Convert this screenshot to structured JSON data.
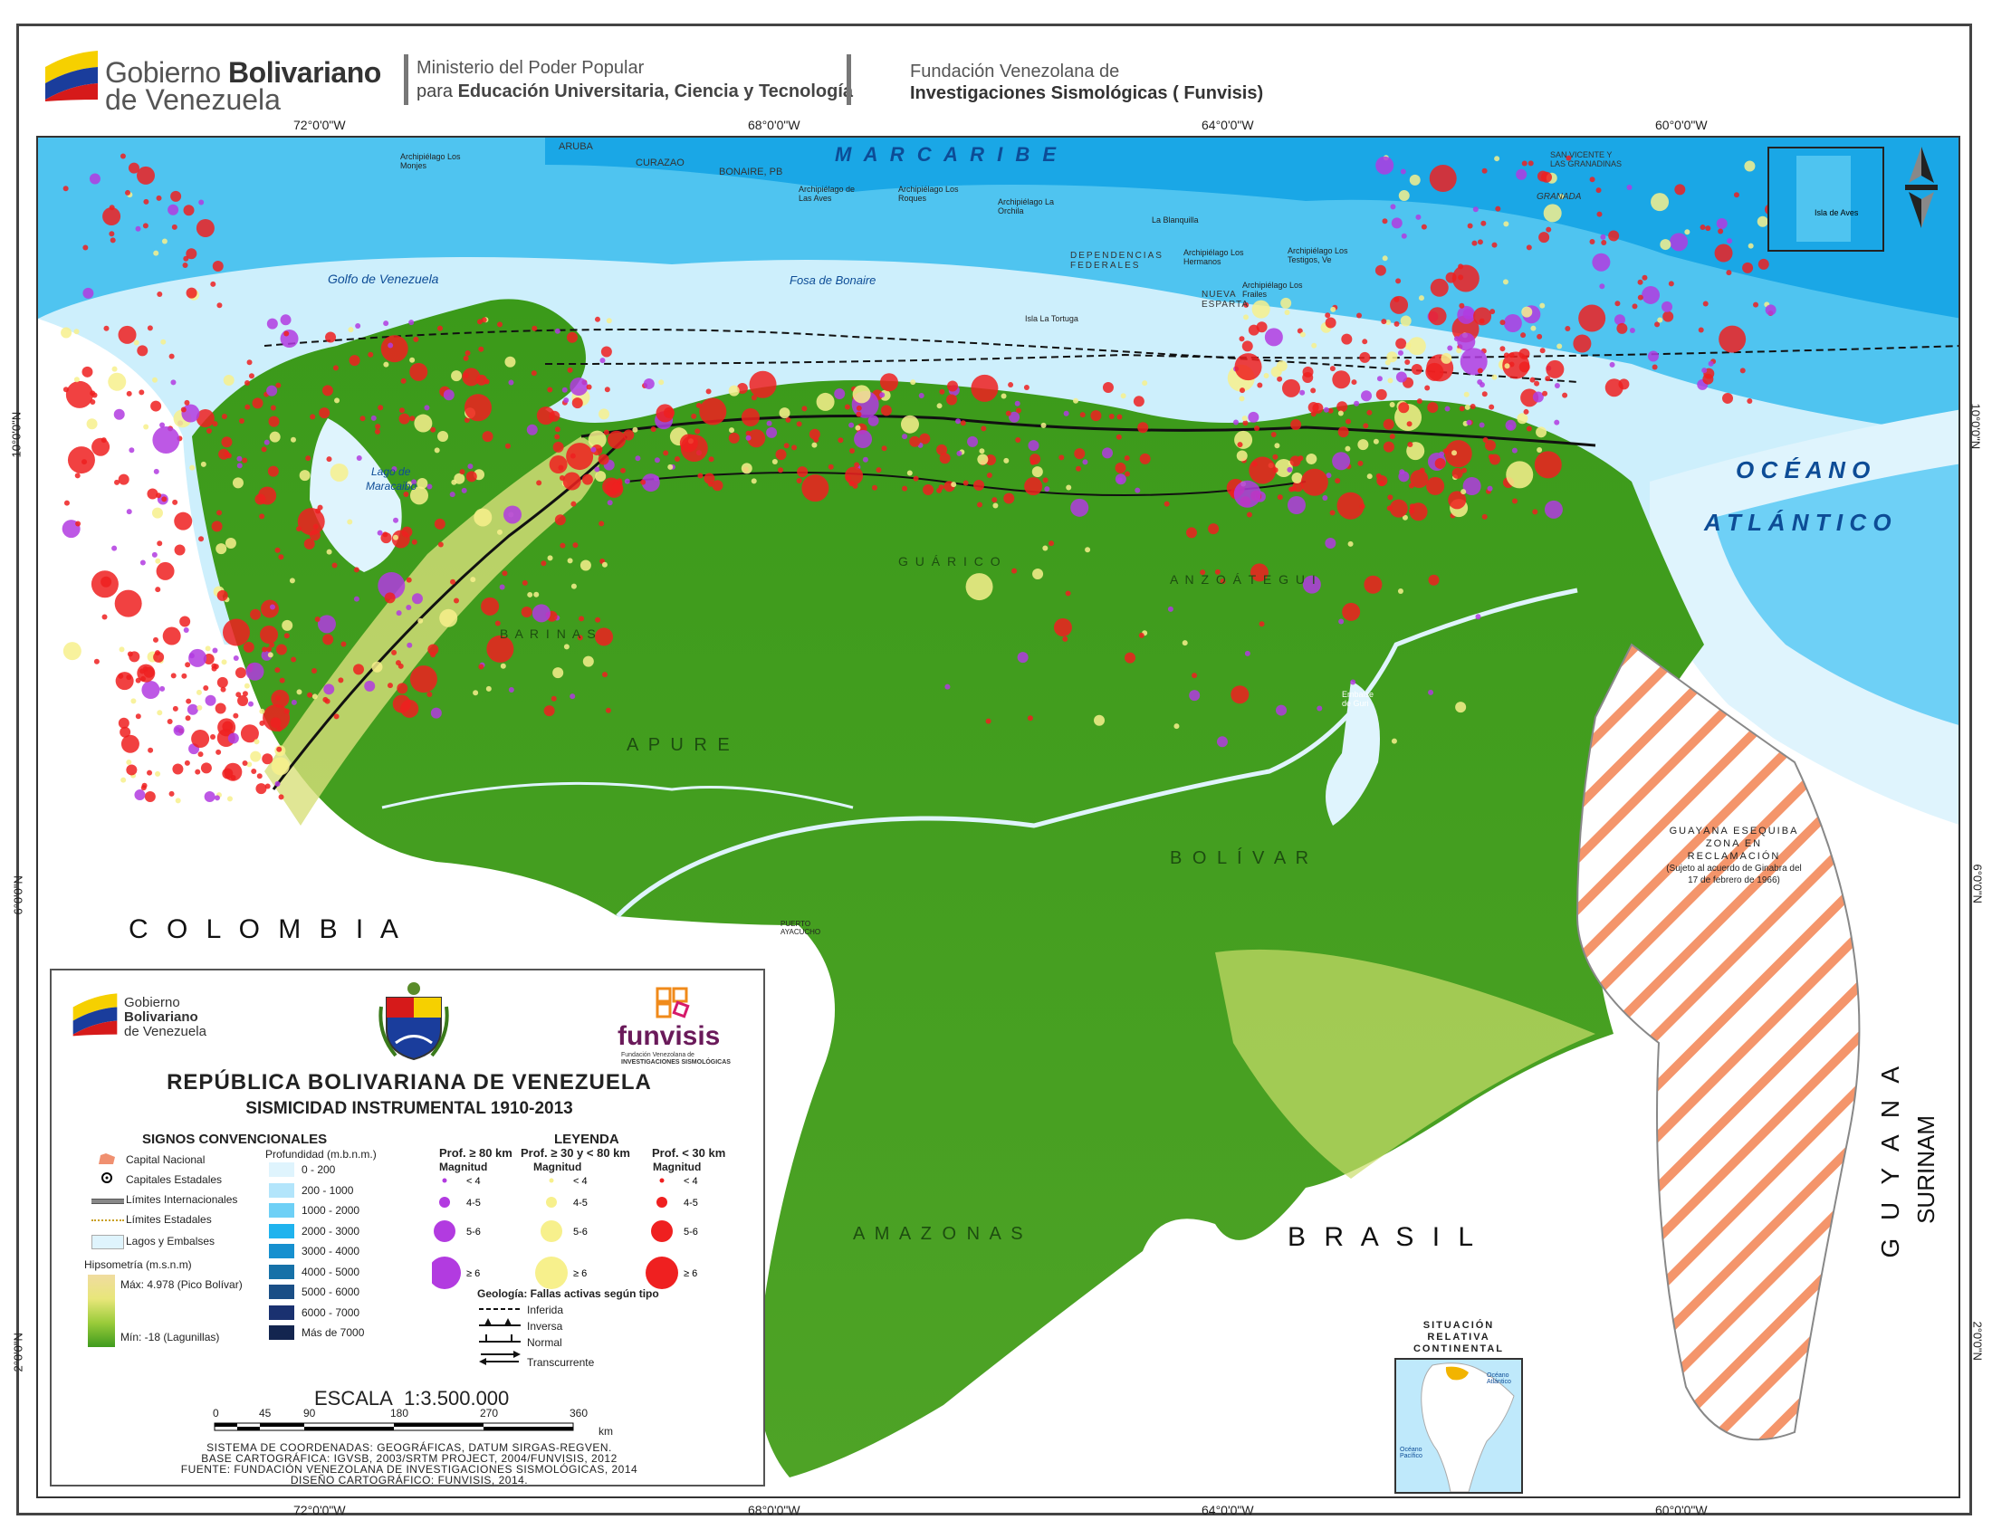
{
  "header": {
    "gov_line1_a": "Gobierno ",
    "gov_line1_b": "Bolivariano",
    "gov_line2": "de Venezuela",
    "ministry_line1": "Ministerio del Poder Popular",
    "ministry_line2_a": "para ",
    "ministry_line2_b": "Educación Universitaria, Ciencia y Tecnología",
    "funvisis_line1": "Fundación Venezolana de",
    "funvisis_line2": "Investigaciones Sismológicas ( Funvisis)"
  },
  "map": {
    "colors": {
      "sea_deep": "#1aa7e6",
      "sea_mid": "#4fc4f0",
      "sea_shallow": "#bfe9fb",
      "land": "#3f9b1e",
      "neighbor": "#ffffff",
      "fault": "#111111",
      "disputed_hatch": "#f4956b"
    },
    "coords": {
      "top": [
        "72°0'0\"W",
        "68°0'0\"W",
        "64°0'0\"W",
        "60°0'0\"W"
      ],
      "bottom": [
        "72°0'0\"W",
        "68°0'0\"W",
        "64°0'0\"W",
        "60°0'0\"W"
      ],
      "left": [
        "10°0'0\"N",
        "6°0'0\"N",
        "2°0'0\"N"
      ],
      "right": [
        "10°0'0\"N",
        "6°0'0\"N",
        "2°0'0\"N"
      ]
    },
    "labels": {
      "mar_caribe": "M A R   C A R I B E",
      "oceano": "O C É A N O",
      "atlantico": "A T L Á N T I C O",
      "colombia": "C   O   L   O   M   B   I   A",
      "brasil": "B   R   A   S   I   L",
      "guyana": "G   U   Y   A   N   A",
      "surinam": "SURINAM",
      "apure": "A  P  U  R  E",
      "bolivar": "B  O  L  Í  V  A  R",
      "amazonas": "A  M  A  Z  O  N  A  S",
      "barinas": "B  A  R  I  N  A  S",
      "guarico": "G  U  Á  R  I  C  O",
      "anzoategui": "A  N  Z  O  Á  T  E  G  U  I",
      "golfo": "Golfo de Venezuela",
      "lago": "Lago de",
      "maracaibo": "Maracaibo",
      "fosa": "Fosa de Bonaire",
      "aruba": "ARUBA",
      "curazao": "CURAZAO",
      "bonaire": "BONAIRE, PB",
      "granada": "GRANADA",
      "san_vicente": "SAN VICENTE Y LAS GRANADINAS",
      "monjes": "Archipiélago Los Monjes",
      "aves": "Archipiélago de Las Aves",
      "roques": "Archipiélago Los Roques",
      "orchila": "Archipiélago La Orchila",
      "blanquilla": "La Blanquilla",
      "hermanos": "Archipiélago Los Hermanos",
      "frailes": "Archipiélago Los Frailes",
      "testigos": "Archipiélago Los Testigos, Ve",
      "dependencias": "DEPENDENCIAS FEDERALES",
      "tortuga": "Isla La Tortuga",
      "nueva_esparta": "NUEVA ESPARTA",
      "esequibo_1": "GUAYANA ESEQUIBA",
      "esequibo_2": "ZONA EN",
      "esequibo_3": "RECLAMACIÓN",
      "esequibo_4": "(Sujeto al acuerdo de Ginabra del",
      "esequibo_5": "17 de febrero de 1966)",
      "embalse": "Embalse de Guri",
      "puerto_ayacucho": "PUERTO AYACUCHO",
      "inset_label": "Isla de Aves"
    }
  },
  "legend": {
    "gov_1": "Gobierno",
    "gov_2": "Bolivariano",
    "gov_3": "de Venezuela",
    "funvisis": "funvisis",
    "funvisis_sub1": "Fundación Venezolana de",
    "funvisis_sub2": "INVESTIGACIONES SISMOLÓGICAS",
    "title": "REPÚBLICA BOLIVARIANA DE VENEZUELA",
    "subtitle": "SISMICIDAD INSTRUMENTAL 1910-2013",
    "signos_title": "SIGNOS CONVENCIONALES",
    "signos": [
      "Capital Nacional",
      "Capitales Estadales",
      "Límites Internacionales",
      "Límites Estadales",
      "Lagos y Embalses"
    ],
    "hipsometria_title": "Hipsometría (m.s.n.m)",
    "hips_max": "Máx: 4.978 (Pico Bolívar)",
    "hips_min": "Mín: -18 (Lagunillas)",
    "profundidad_title": "Profundidad (m.b.n.m.)",
    "profundidad": [
      {
        "label": "0 - 200",
        "color": "#dff4fd"
      },
      {
        "label": "200 - 1000",
        "color": "#b3e5fb"
      },
      {
        "label": "1000 - 2000",
        "color": "#6ed0f6"
      },
      {
        "label": "2000 - 3000",
        "color": "#1fb3ee"
      },
      {
        "label": "3000 - 4000",
        "color": "#1690cf"
      },
      {
        "label": "4000 - 5000",
        "color": "#1671a8"
      },
      {
        "label": "5000 - 6000",
        "color": "#1a4f86"
      },
      {
        "label": "6000 - 7000",
        "color": "#1a3170"
      },
      {
        "label": "Más de 7000",
        "color": "#13254f"
      }
    ],
    "leyenda_title": "LEYENDA",
    "deep_head": "Prof. ≥ 80 km",
    "mid_head": "Prof. ≥ 30 y < 80 km",
    "shallow_head": "Prof. < 30 km",
    "magnitud": "Magnitud",
    "mags": [
      "< 4",
      "4-5",
      "5-6",
      "≥ 6"
    ],
    "deep_color": "#b23be0",
    "mid_color": "#f7f08c",
    "shallow_color": "#ef2020",
    "geologia_title": "Geología: Fallas activas según tipo",
    "fallas": [
      "Inferida",
      "Inversa",
      "Normal",
      "Transcurrente"
    ],
    "escala_label": "ESCALA",
    "escala_value": "1:3.500.000",
    "scale_ticks": [
      "0",
      "45",
      "90",
      "180",
      "270",
      "360"
    ],
    "scale_unit": "km",
    "credit_1": "SISTEMA DE COORDENADAS: GEOGRÁFICAS, DATUM SIRGAS-REGVEN.",
    "credit_2": "BASE CARTOGRÁFICA: IGVSB, 2003/SRTM PROJECT, 2004/FUNVISIS, 2012",
    "credit_3": "FUENTE: FUNDACIÓN VENEZOLANA DE INVESTIGACIONES SISMOLÓGICAS, 2014",
    "credit_4": "DISEÑO CARTOGRÁFICO: FUNVISIS, 2014."
  },
  "inset": {
    "title_1": "SITUACIÓN",
    "title_2": "RELATIVA",
    "title_3": "CONTINENTAL",
    "ocean_atl": "Océano Atlántico",
    "ocean_pac": "Océano Pacífico"
  }
}
